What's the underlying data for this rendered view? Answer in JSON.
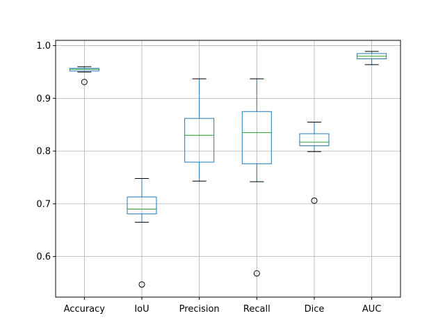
{
  "chart_data": {
    "type": "boxplot",
    "title": "",
    "xlabel": "",
    "ylabel": "",
    "categories": [
      "Accuracy",
      "IoU",
      "Precision",
      "Recall",
      "Dice",
      "AUC"
    ],
    "series": [
      {
        "whisker_low": 0.95,
        "q1": 0.952,
        "median": 0.955,
        "q3": 0.957,
        "whisker_high": 0.96,
        "outliers": [
          0.931
        ]
      },
      {
        "whisker_low": 0.665,
        "q1": 0.681,
        "median": 0.69,
        "q3": 0.713,
        "whisker_high": 0.748,
        "outliers": [
          0.547
        ]
      },
      {
        "whisker_low": 0.743,
        "q1": 0.779,
        "median": 0.83,
        "q3": 0.862,
        "whisker_high": 0.937,
        "outliers": []
      },
      {
        "whisker_low": 0.742,
        "q1": 0.776,
        "median": 0.835,
        "q3": 0.875,
        "whisker_high": 0.937,
        "outliers": [
          0.568
        ]
      },
      {
        "whisker_low": 0.799,
        "q1": 0.81,
        "median": 0.817,
        "q3": 0.833,
        "whisker_high": 0.855,
        "outliers": [
          0.706
        ]
      },
      {
        "whisker_low": 0.964,
        "q1": 0.975,
        "median": 0.98,
        "q3": 0.985,
        "whisker_high": 0.989,
        "outliers": []
      }
    ],
    "ylim": [
      0.523,
      1.01
    ],
    "yticks": [
      0.6,
      0.7,
      0.8,
      0.9,
      1.0
    ],
    "ytick_labels": [
      "0.6",
      "0.7",
      "0.8",
      "0.9",
      "1.0"
    ],
    "grid": true,
    "legend": "none",
    "colors": {
      "box": "#1f77b4",
      "median": "#2ca02c",
      "whisker": "#000000",
      "grid": "#b0b0b0",
      "outlier": "#000000"
    }
  }
}
